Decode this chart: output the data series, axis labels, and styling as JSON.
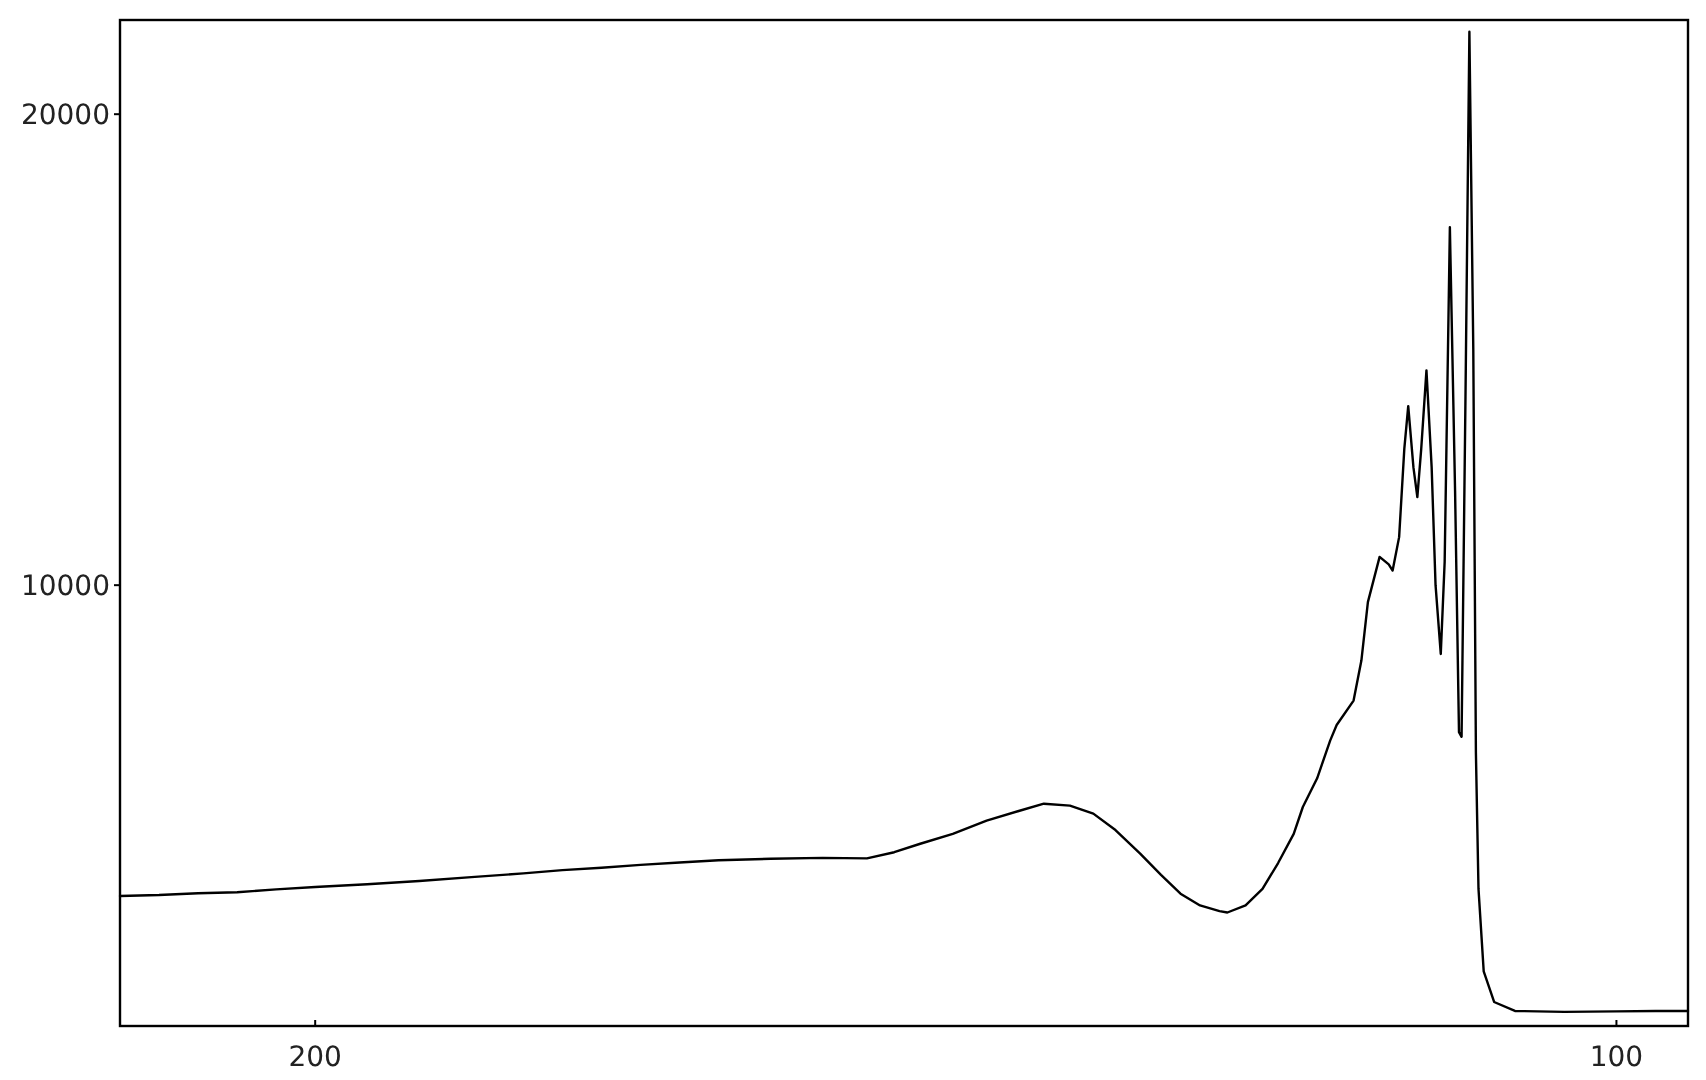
{
  "chart_data": {
    "type": "line",
    "color": "#000000",
    "x": [
      215,
      212,
      209,
      206,
      203,
      200,
      196,
      192,
      188,
      184,
      181,
      178,
      175,
      172,
      169,
      165,
      161,
      157.6,
      155.5,
      153.5,
      151,
      148.4,
      146,
      144,
      142,
      140.2,
      138.5,
      136.6,
      135,
      133.5,
      132,
      130.5,
      129.9,
      128.5,
      127.2,
      126,
      124.8,
      124.1,
      123,
      122,
      121.5,
      120.2,
      119.6,
      119.1,
      118.2,
      117.5,
      117.2,
      116.7,
      116.3,
      116,
      115.6,
      115.3,
      115,
      114.6,
      114.2,
      113.9,
      113.5,
      113.2,
      112.8,
      112.4,
      112.1,
      111.9,
      111.6,
      111.3,
      111,
      110.8,
      110.6,
      110.2,
      109.4,
      107.8,
      104,
      100,
      97,
      94.5
    ],
    "values": [
      3400,
      3420,
      3460,
      3480,
      3540,
      3590,
      3650,
      3720,
      3800,
      3880,
      3950,
      4000,
      4060,
      4110,
      4160,
      4190,
      4210,
      4200,
      4330,
      4510,
      4720,
      5000,
      5200,
      5360,
      5320,
      5150,
      4800,
      4300,
      3850,
      3450,
      3200,
      3080,
      3050,
      3200,
      3550,
      4100,
      4720,
      5290,
      5900,
      6700,
      7030,
      7550,
      8400,
      9640,
      10600,
      10440,
      10310,
      11020,
      12900,
      13800,
      12500,
      11870,
      12900,
      14560,
      12500,
      10000,
      8540,
      10500,
      17600,
      12000,
      6880,
      6780,
      14000,
      21750,
      15000,
      6450,
      3550,
      1800,
      1150,
      960,
      940,
      950,
      960,
      960
    ],
    "xlim": [
      215,
      94.5
    ],
    "xticks": [
      200,
      100
    ],
    "ylim": [
      640,
      22000
    ],
    "yticks": [
      10000,
      20000
    ]
  }
}
